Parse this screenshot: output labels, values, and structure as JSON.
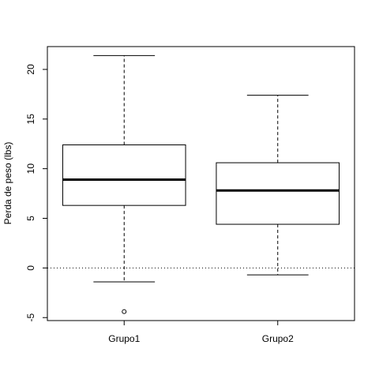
{
  "chart_data": {
    "type": "boxplot",
    "title": "",
    "xlabel": "",
    "ylabel": "Perda de peso (lbs)",
    "categories": [
      "Grupo1",
      "Grupo2"
    ],
    "boxes": [
      {
        "label": "Grupo1",
        "whisker_low": -1.4,
        "q1": 6.3,
        "median": 8.9,
        "q3": 12.4,
        "whisker_high": 21.4,
        "outliers": [
          -4.4
        ]
      },
      {
        "label": "Grupo2",
        "whisker_low": -0.7,
        "q1": 4.4,
        "median": 7.8,
        "q3": 10.6,
        "whisker_high": 17.4,
        "outliers": []
      }
    ],
    "y_ticks": [
      "-5",
      "0",
      "5",
      "10",
      "15",
      "20"
    ],
    "ylim": [
      -5.3,
      22.3
    ],
    "reference_line": {
      "y": 0,
      "style": "dotted"
    },
    "grid": false,
    "legend": "none"
  }
}
